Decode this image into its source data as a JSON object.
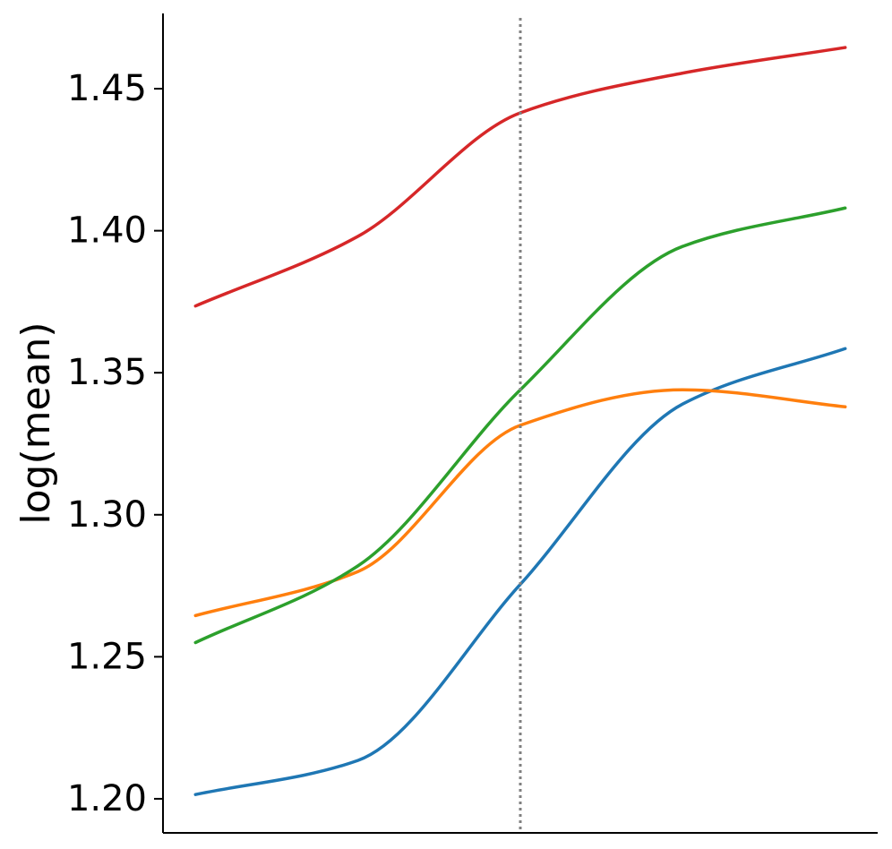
{
  "chart_data": {
    "type": "line",
    "title": "",
    "xlabel": "",
    "ylabel": "log(mean)",
    "x": [
      0,
      1,
      2,
      3,
      4
    ],
    "xlim": [
      -0.2,
      4.2
    ],
    "ylim": [
      1.188,
      1.4765
    ],
    "y_ticks": [
      1.2,
      1.25,
      1.3,
      1.35,
      1.4,
      1.45
    ],
    "y_tick_labels": [
      "1.20",
      "1.25",
      "1.30",
      "1.35",
      "1.40",
      "1.45"
    ],
    "x_ticks_visible": false,
    "grid": false,
    "legend": "none",
    "reference_line": {
      "x": 2,
      "style": "dotted",
      "color": "#808080"
    },
    "series": [
      {
        "color": "#1f77b4",
        "values": [
          1.2015,
          1.2135,
          1.2755,
          1.339,
          1.3585
        ]
      },
      {
        "color": "#ff7f0e",
        "values": [
          1.2645,
          1.28,
          1.3315,
          1.344,
          1.338
        ]
      },
      {
        "color": "#2ca02c",
        "values": [
          1.255,
          1.282,
          1.344,
          1.3945,
          1.408
        ]
      },
      {
        "color": "#d62728",
        "values": [
          1.3735,
          1.398,
          1.4415,
          1.4555,
          1.4645
        ]
      }
    ]
  }
}
